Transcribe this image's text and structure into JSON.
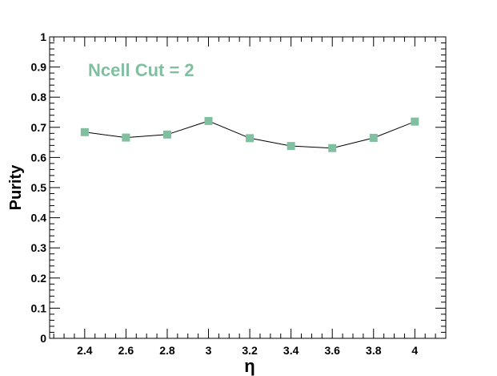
{
  "chart_data": {
    "type": "line",
    "title": "",
    "xlabel": "η",
    "ylabel": "Purity",
    "annotation": "Ncell Cut = 2",
    "xlim": [
      2.23,
      4.15
    ],
    "ylim": [
      0,
      1
    ],
    "xticks": [
      "2.4",
      "2.6",
      "2.8",
      "3",
      "3.2",
      "3.4",
      "3.6",
      "3.8",
      "4"
    ],
    "yticks": [
      "0",
      "0.1",
      "0.2",
      "0.3",
      "0.4",
      "0.5",
      "0.6",
      "0.7",
      "0.8",
      "0.9",
      "1"
    ],
    "grid": false,
    "series": [
      {
        "x": [
          2.4,
          2.6,
          2.8,
          3.0,
          3.2,
          3.4,
          3.6,
          3.8,
          4.0
        ],
        "y": [
          0.684,
          0.666,
          0.676,
          0.721,
          0.664,
          0.638,
          0.631,
          0.665,
          0.719
        ]
      }
    ],
    "colors": {
      "marker": "#80c0a0",
      "line": "#000000",
      "annotation": "#80c0a0"
    }
  }
}
